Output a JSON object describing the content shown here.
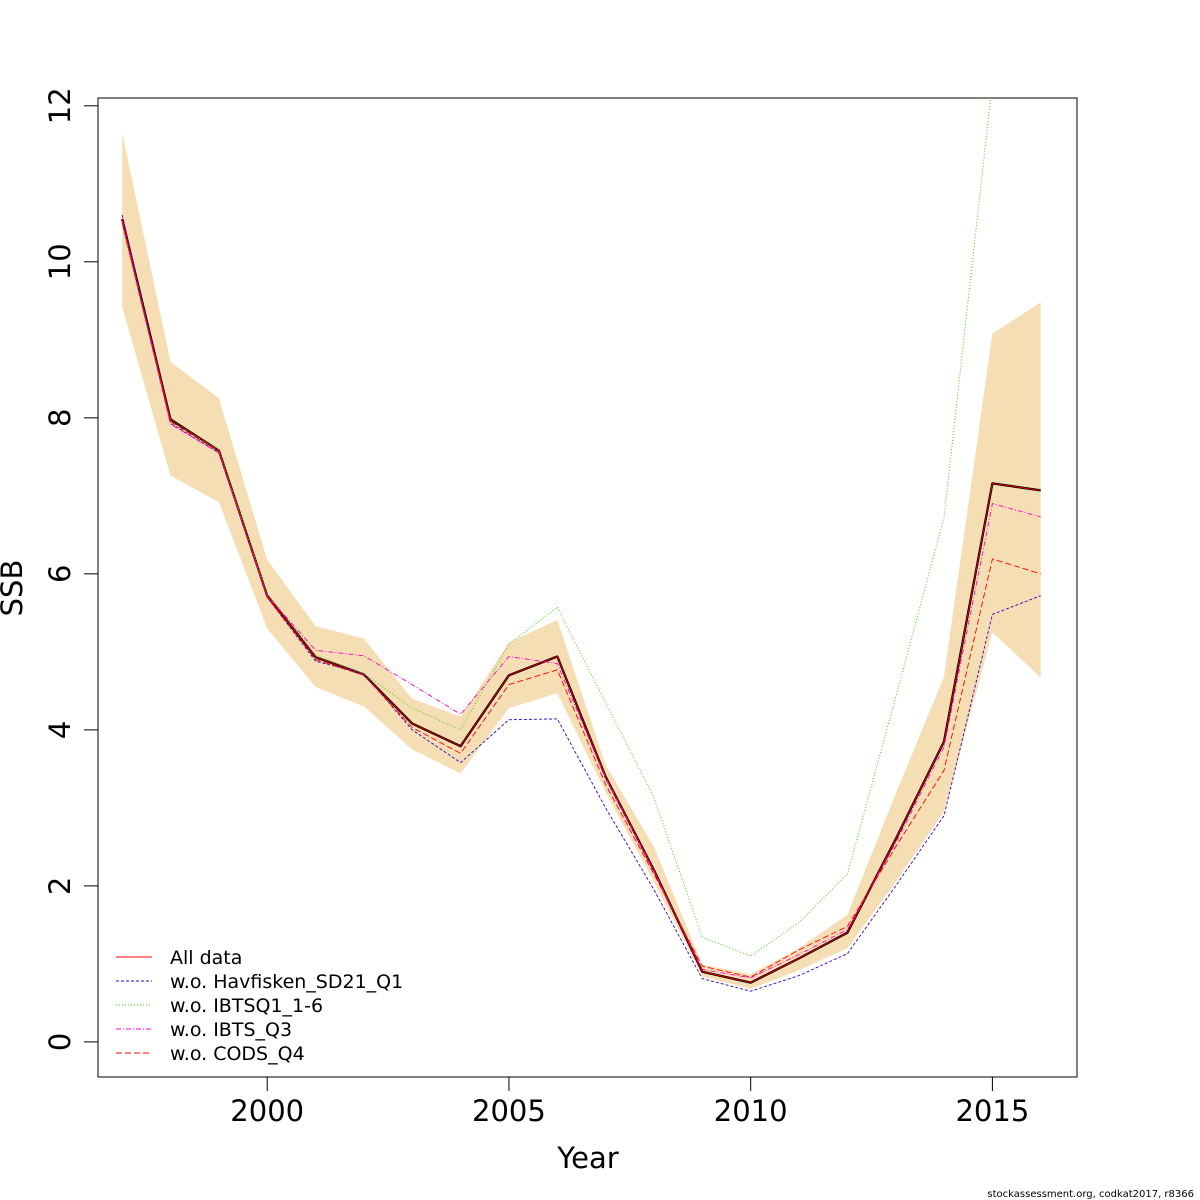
{
  "chart_data": {
    "type": "line",
    "xlabel": "Year",
    "ylabel": "SSB",
    "xlim": [
      1996.5,
      2016.75
    ],
    "ylim": [
      -0.45,
      12.1
    ],
    "x_ticks": [
      2000,
      2005,
      2010,
      2015
    ],
    "y_ticks": [
      0,
      2,
      4,
      6,
      8,
      10,
      12
    ],
    "x": [
      1997,
      1998,
      1999,
      2000,
      2001,
      2002,
      2003,
      2004,
      2005,
      2006,
      2007,
      2008,
      2009,
      2010,
      2011,
      2012,
      2013,
      2014,
      2015,
      2016
    ],
    "confidence_band": {
      "color": "#F5DEB3",
      "lower": [
        9.42,
        7.26,
        6.92,
        5.3,
        4.55,
        4.3,
        3.75,
        3.44,
        4.28,
        4.47,
        3.2,
        2.05,
        0.84,
        0.68,
        0.92,
        1.2,
        2.05,
        2.95,
        5.25,
        4.67
      ],
      "upper": [
        11.65,
        8.72,
        8.25,
        6.18,
        5.33,
        5.17,
        4.4,
        4.17,
        5.12,
        5.41,
        3.55,
        2.5,
        0.99,
        0.87,
        1.2,
        1.63,
        3.18,
        4.68,
        9.08,
        9.48
      ]
    },
    "series": [
      {
        "name": "All data",
        "color": "#000000",
        "dash": "",
        "width": 2.3,
        "values": [
          10.55,
          7.98,
          7.58,
          5.72,
          4.93,
          4.71,
          4.08,
          3.79,
          4.7,
          4.94,
          3.4,
          2.2,
          0.9,
          0.76,
          1.07,
          1.4,
          2.6,
          3.85,
          7.16,
          7.07
        ]
      },
      {
        "name": "All data",
        "color": "#FF0000",
        "dash": "",
        "width": 0.8,
        "values": [
          10.55,
          7.98,
          7.58,
          5.72,
          4.93,
          4.71,
          4.08,
          3.79,
          4.7,
          4.94,
          3.4,
          2.2,
          0.9,
          0.76,
          1.07,
          1.4,
          2.6,
          3.85,
          7.16,
          7.07
        ]
      },
      {
        "name": "w.o. Havfisken_SD21_Q1",
        "color": "#3300CC",
        "dash": "3,2",
        "width": 0.9,
        "values": [
          10.6,
          7.93,
          7.55,
          5.7,
          4.88,
          4.72,
          4.0,
          3.58,
          4.13,
          4.14,
          3.0,
          1.95,
          0.81,
          0.65,
          0.85,
          1.13,
          2.0,
          2.9,
          5.48,
          5.72
        ]
      },
      {
        "name": "w.o. IBTSQ1_1-6",
        "color": "#33CC00",
        "dash": "1,2",
        "width": 0.9,
        "values": [
          10.45,
          7.95,
          7.59,
          5.75,
          4.96,
          4.72,
          4.28,
          4.0,
          5.1,
          5.57,
          4.35,
          3.13,
          1.34,
          1.1,
          1.53,
          2.15,
          4.42,
          6.72,
          12.3,
          12.3
        ]
      },
      {
        "name": "w.o. IBTS_Q3",
        "color": "#FF00CC",
        "dash": "5,2,1,2",
        "width": 0.9,
        "values": [
          10.5,
          7.92,
          7.55,
          5.72,
          5.02,
          4.95,
          4.58,
          4.2,
          4.94,
          4.85,
          3.38,
          2.18,
          0.93,
          0.82,
          1.12,
          1.44,
          2.55,
          3.78,
          6.9,
          6.73
        ]
      },
      {
        "name": "w.o. CODS_Q4",
        "color": "#FF0000",
        "dash": "6,3",
        "width": 0.9,
        "values": [
          10.52,
          7.95,
          7.57,
          5.7,
          4.9,
          4.7,
          4.03,
          3.7,
          4.58,
          4.77,
          3.3,
          2.15,
          0.97,
          0.83,
          1.18,
          1.48,
          2.5,
          3.48,
          6.19,
          6.0
        ]
      }
    ],
    "legend": {
      "position": "bottom-left",
      "entries": [
        {
          "label": "All data",
          "color": "#FF0000",
          "dash": ""
        },
        {
          "label": "w.o. Havfisken_SD21_Q1",
          "color": "#3300CC",
          "dash": "3,2"
        },
        {
          "label": "w.o. IBTSQ1_1-6",
          "color": "#33CC00",
          "dash": "1,2"
        },
        {
          "label": "w.o. IBTS_Q3",
          "color": "#FF00CC",
          "dash": "5,2,1,2"
        },
        {
          "label": "w.o. CODS_Q4",
          "color": "#FF0000",
          "dash": "6,3"
        }
      ]
    },
    "footer": "stockassessment.org, codkat2017, r8366"
  }
}
